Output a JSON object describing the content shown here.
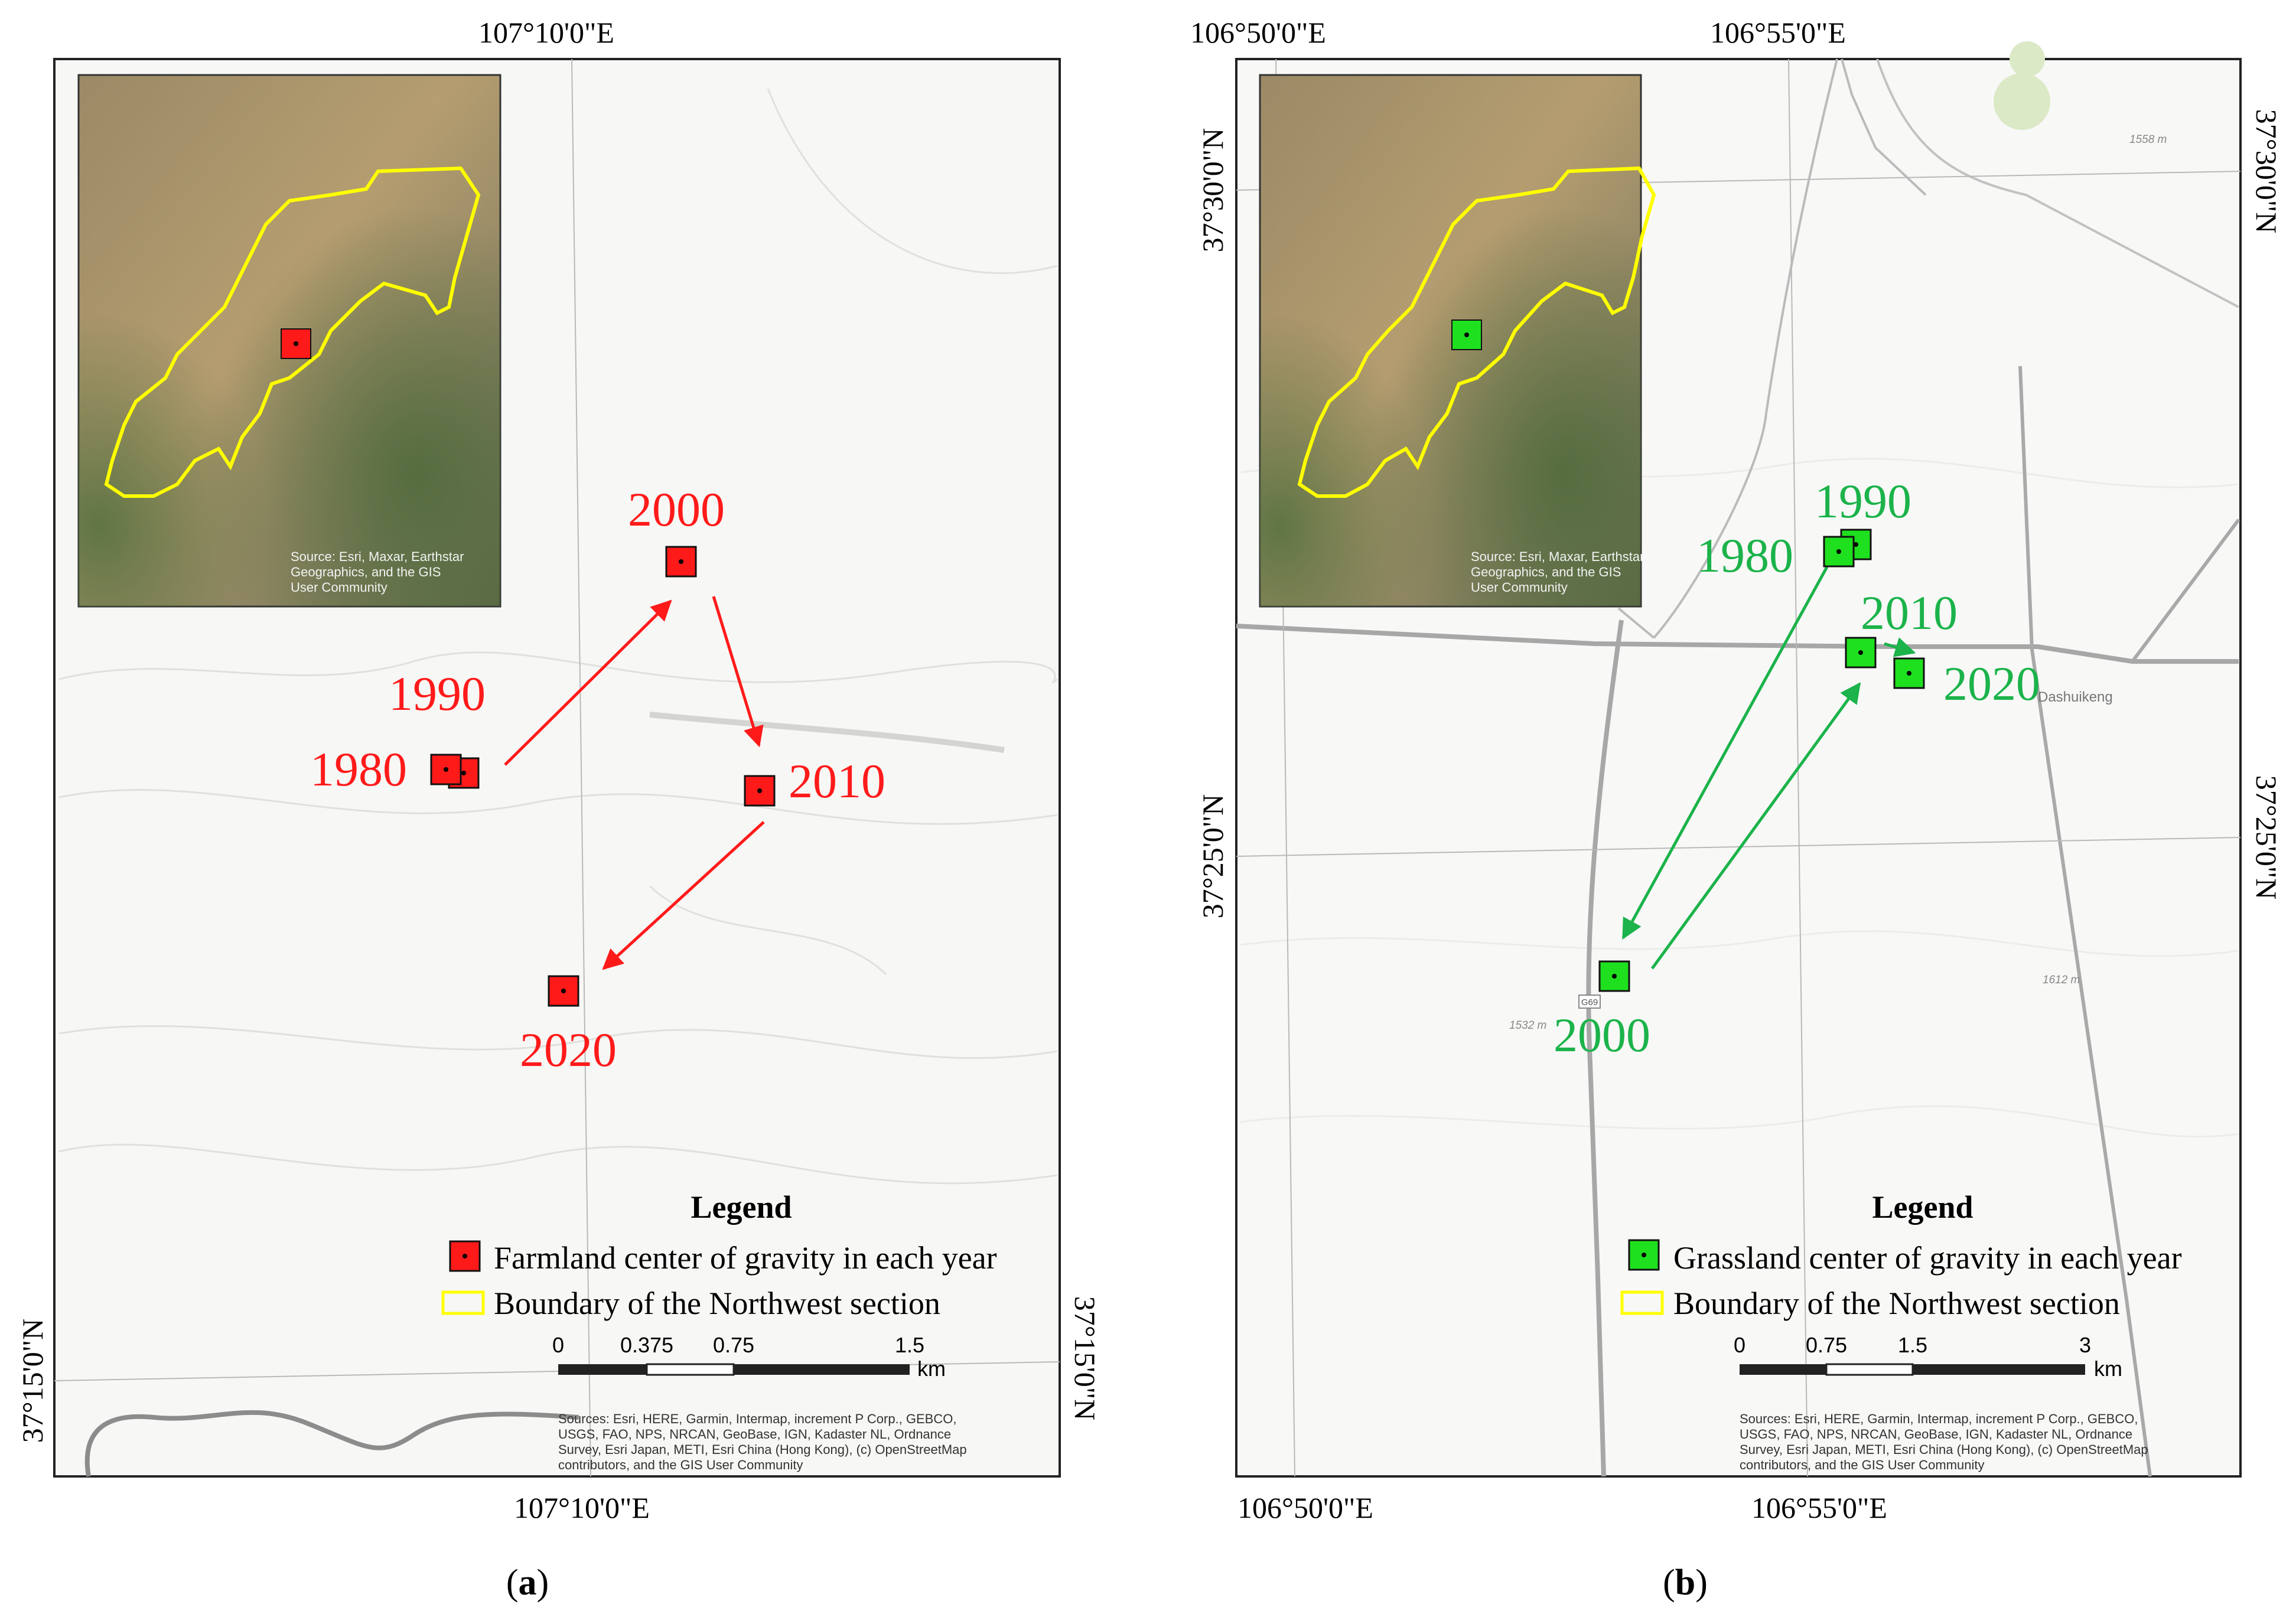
{
  "panels": [
    {
      "id": "a",
      "caption": "a",
      "color": "#ff1a1a",
      "top_coord": "107°10'0\"E",
      "bottom_coord": "107°10'0\"E",
      "left_coord": "37°15'0\"N",
      "right_coord": "37°15'0\"N",
      "inset_source": "Source: Esri, Maxar, Earthstar Geographics, and the GIS User Community",
      "inset_source_lines": [
        "Source: Esri, Maxar, Earthstar",
        "Geographics, and the GIS",
        "User Community"
      ],
      "years": [
        "1980",
        "1990",
        "2000",
        "2010",
        "2020"
      ],
      "legend": {
        "title": "Legend",
        "item1": "Farmland center of gravity in each year",
        "item2": "Boundary of the Northwest section"
      },
      "scale": {
        "ticks": [
          "0",
          "0.375",
          "0.75",
          "1.5"
        ],
        "unit": "km"
      },
      "sources_lines": [
        "Sources: Esri, HERE, Garmin, Intermap, increment P Corp., GEBCO,",
        "USGS, FAO, NPS, NRCAN, GeoBase, IGN, Kadaster NL, Ordnance",
        "Survey, Esri Japan, METI, Esri China (Hong Kong), (c) OpenStreetMap",
        "contributors, and the GIS User Community"
      ]
    },
    {
      "id": "b",
      "caption": "b",
      "color": "#1bb34a",
      "top_coord_left": "106°50'0\"E",
      "top_coord_right": "106°55'0\"E",
      "bottom_coord_left": "106°50'0\"E",
      "bottom_coord_right": "106°55'0\"E",
      "left_coord_top": "37°30'0\"N",
      "left_coord_bottom": "37°25'0\"N",
      "right_coord_top": "37°30'0\"N",
      "right_coord_bottom": "37°25'0\"N",
      "inset_source_lines": [
        "Source: Esri, Maxar, Earthstar",
        "Geographics, and the GIS",
        "User Community"
      ],
      "years": [
        "1980",
        "1990",
        "2000",
        "2010",
        "2020"
      ],
      "place_label": "Dashuikeng",
      "elev_labels": [
        "1558 m",
        "1532 m",
        "1612 m"
      ],
      "road_label": "G69",
      "legend": {
        "title": "Legend",
        "item1": "Grassland center of gravity in each year",
        "item2": "Boundary of the Northwest section"
      },
      "scale": {
        "ticks": [
          "0",
          "0.75",
          "1.5",
          "3"
        ],
        "unit": "km"
      },
      "sources_lines": [
        "Sources: Esri, HERE, Garmin, Intermap, increment P Corp., GEBCO,",
        "USGS, FAO, NPS, NRCAN, GeoBase, IGN, Kadaster NL, Ordnance",
        "Survey, Esri Japan, METI, Esri China (Hong Kong), (c) OpenStreetMap",
        "contributors, and the GIS User Community"
      ]
    }
  ]
}
